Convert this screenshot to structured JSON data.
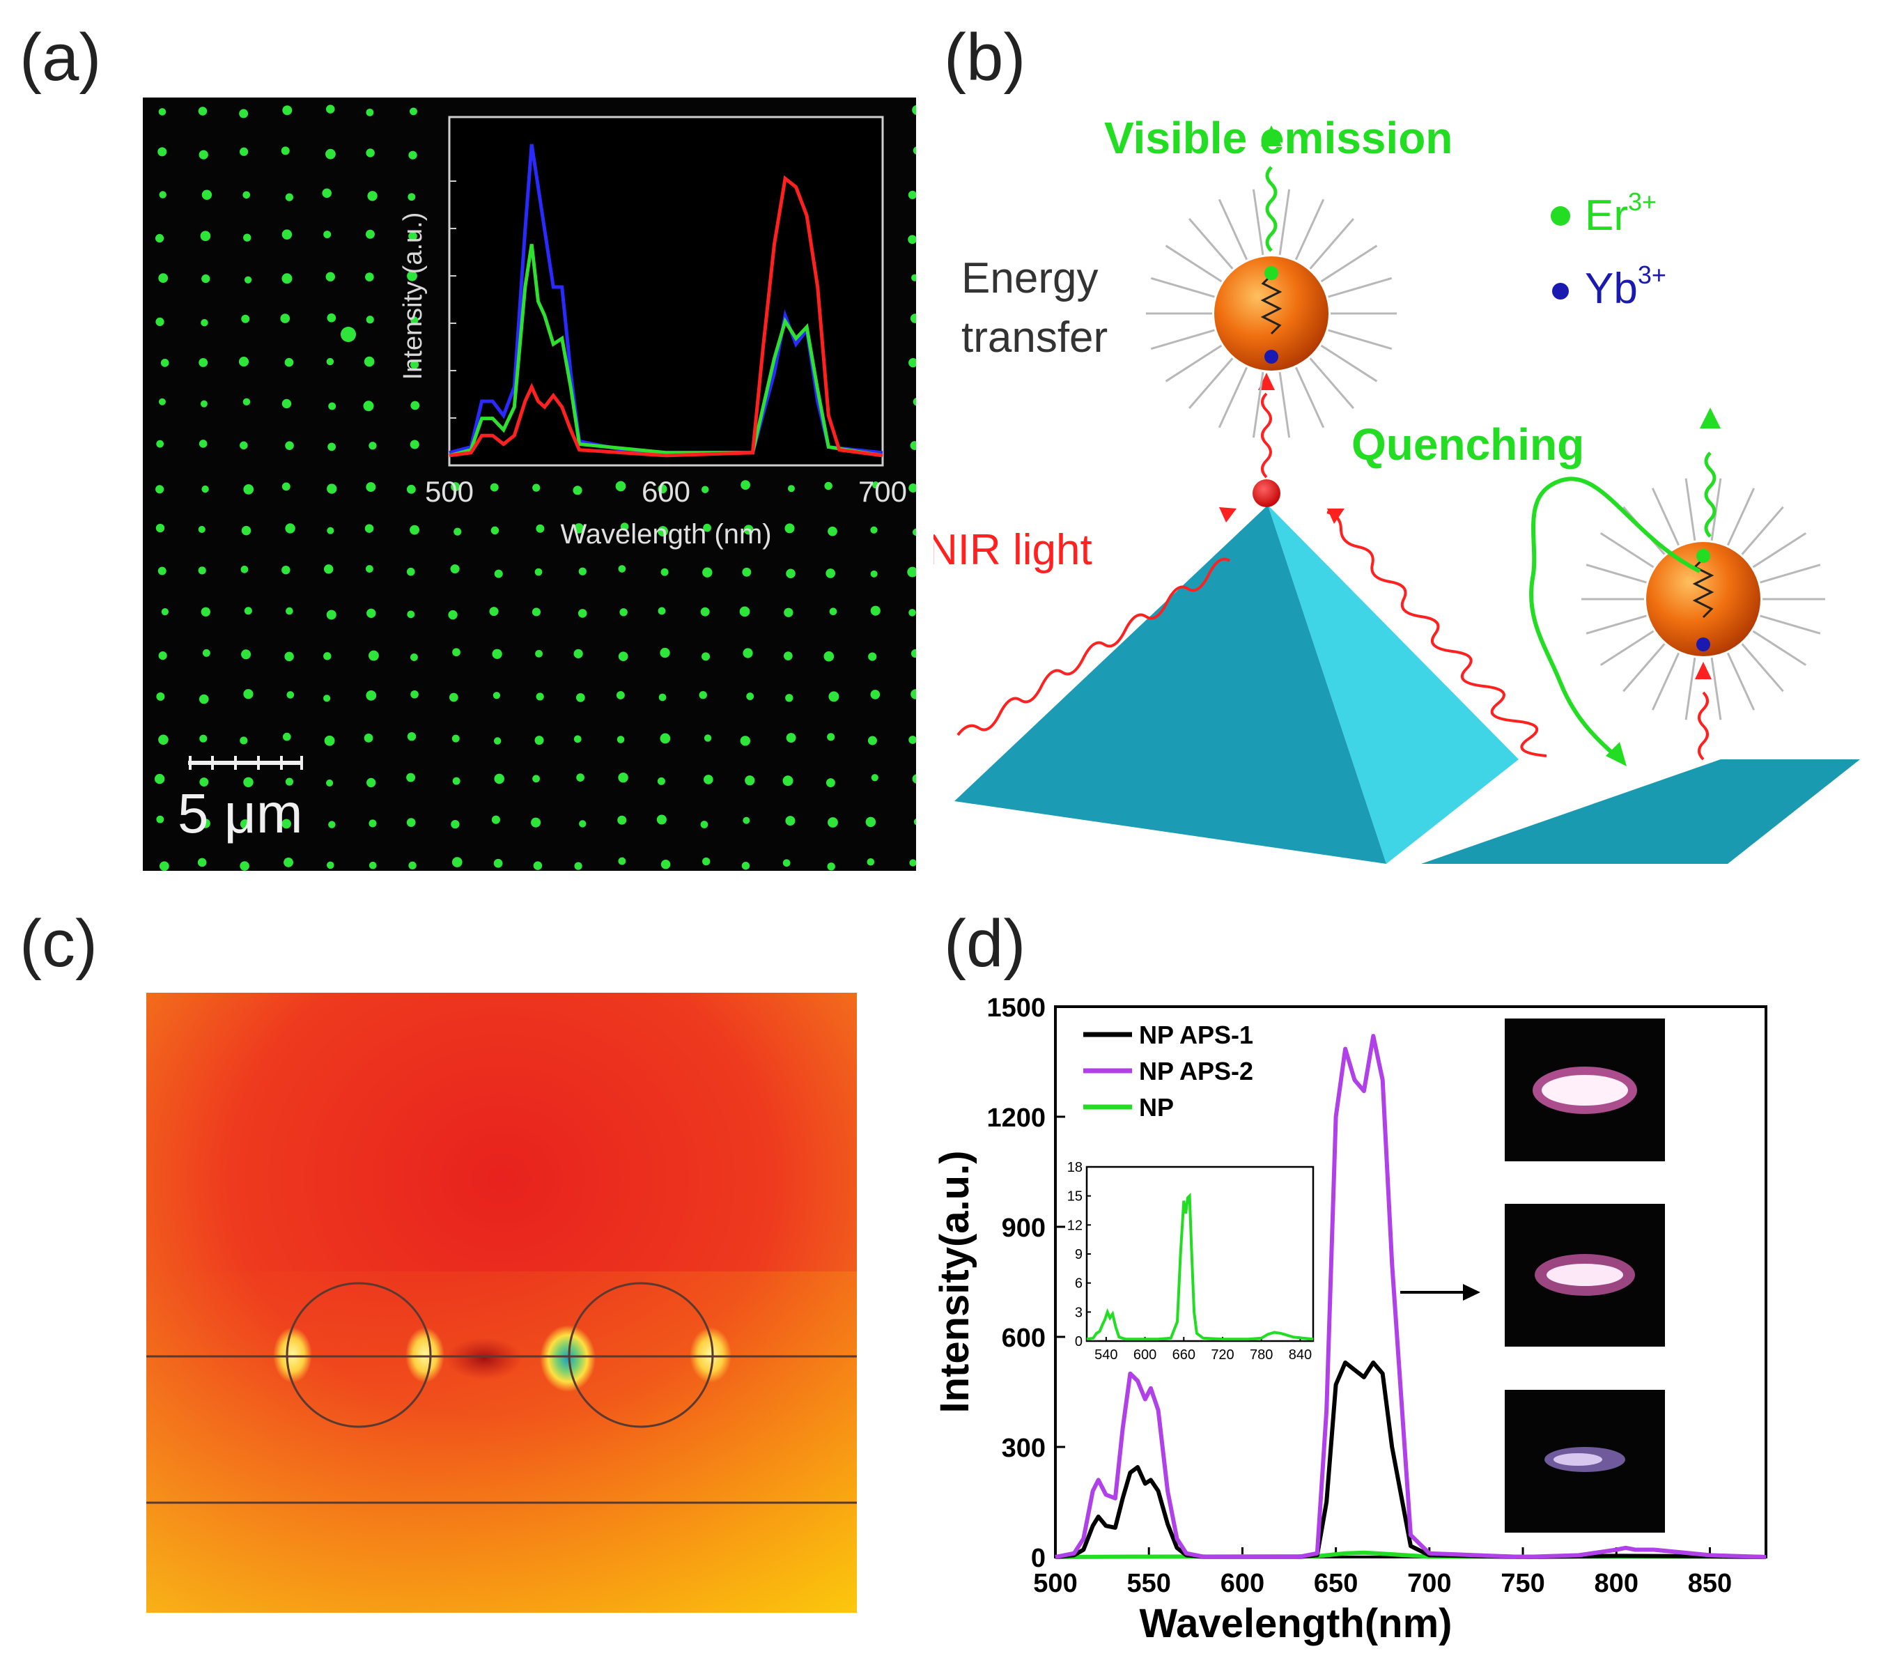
{
  "panels": {
    "a": {
      "label": "(a)"
    },
    "b": {
      "label": "(b)"
    },
    "c": {
      "label": "(c)"
    },
    "d": {
      "label": "(d)"
    }
  },
  "panel_a": {
    "scale_bar_label": "5 μm",
    "inset": {
      "ylabel": "Intensity (a.u.)",
      "xlabel": "Wavelength (nm)",
      "xticks": [
        "500",
        "600",
        "700"
      ]
    },
    "colors": {
      "dots": "#2ee63a",
      "background": "#050505",
      "red": "#ff2020",
      "green": "#30e030",
      "blue": "#2a2aff"
    }
  },
  "panel_b": {
    "visible_emission": "Visible emission",
    "energy_transfer_1": "Energy",
    "energy_transfer_2": "transfer",
    "quenching": "Quenching",
    "nir_light": "NIR light",
    "legend": [
      {
        "symbol": "Er",
        "sup": "3+",
        "color": "#22dd22"
      },
      {
        "symbol": "Yb",
        "sup": "3+",
        "color": "#1a1ab0"
      }
    ]
  },
  "panel_c": {
    "colors": {
      "field": "#ee3322",
      "edge": "#f5b020"
    }
  },
  "chart_data": {
    "type": "line",
    "xlabel": "Wavelength(nm)",
    "ylabel": "Intensity(a.u.)",
    "xlim": [
      500,
      880
    ],
    "ylim": [
      0,
      1500
    ],
    "xticks": [
      "500",
      "550",
      "600",
      "650",
      "700",
      "750",
      "800",
      "850"
    ],
    "yticks": [
      "0",
      "300",
      "600",
      "900",
      "1200",
      "1500"
    ],
    "legend_position": "top-left",
    "series": [
      {
        "name": "NP APS-1",
        "color": "#000000",
        "x": [
          500,
          510,
          515,
          520,
          523,
          527,
          532,
          536,
          540,
          544,
          548,
          551,
          555,
          560,
          565,
          570,
          580,
          600,
          620,
          630,
          640,
          645,
          650,
          655,
          660,
          665,
          670,
          675,
          680,
          690,
          700,
          750,
          800,
          850,
          880
        ],
        "y": [
          0,
          5,
          20,
          85,
          110,
          85,
          80,
          160,
          230,
          245,
          200,
          210,
          180,
          90,
          25,
          5,
          0,
          0,
          0,
          0,
          5,
          150,
          470,
          530,
          510,
          490,
          530,
          500,
          300,
          30,
          5,
          0,
          3,
          2,
          0
        ]
      },
      {
        "name": "NP APS-2",
        "color": "#b040e8",
        "x": [
          500,
          510,
          515,
          520,
          523,
          527,
          532,
          536,
          540,
          544,
          548,
          551,
          555,
          560,
          565,
          570,
          580,
          600,
          620,
          630,
          640,
          645,
          650,
          655,
          660,
          665,
          670,
          675,
          680,
          690,
          700,
          750,
          780,
          800,
          805,
          810,
          820,
          830,
          850,
          880
        ],
        "y": [
          0,
          10,
          50,
          180,
          210,
          170,
          160,
          350,
          500,
          480,
          430,
          460,
          400,
          180,
          50,
          10,
          0,
          0,
          0,
          0,
          10,
          400,
          1200,
          1385,
          1300,
          1270,
          1420,
          1300,
          800,
          60,
          10,
          0,
          5,
          20,
          25,
          20,
          20,
          15,
          5,
          0
        ]
      },
      {
        "name": "NP",
        "color": "#22dd22",
        "x": [
          500,
          540,
          550,
          640,
          655,
          665,
          675,
          700,
          800,
          830,
          880
        ],
        "y": [
          0,
          1,
          1,
          2,
          10,
          12,
          9,
          1,
          1,
          1,
          0
        ]
      }
    ]
  },
  "inset_d": {
    "xlim": [
      510,
      860
    ],
    "ylim": [
      0,
      18
    ],
    "xticks": [
      "540",
      "600",
      "660",
      "720",
      "780",
      "840"
    ],
    "yticks": [
      "0",
      "3",
      "6",
      "9",
      "12",
      "15",
      "18"
    ],
    "x": [
      510,
      520,
      525,
      530,
      535,
      538,
      542,
      546,
      550,
      555,
      560,
      570,
      590,
      620,
      640,
      650,
      655,
      660,
      663,
      666,
      669,
      672,
      676,
      680,
      690,
      720,
      760,
      780,
      790,
      800,
      810,
      830,
      860
    ],
    "y": [
      0.2,
      0.3,
      0.8,
      1.0,
      1.8,
      2.2,
      3.0,
      2.4,
      2.8,
      1.4,
      0.4,
      0.2,
      0.2,
      0.2,
      0.3,
      2.0,
      9.0,
      14.5,
      13.2,
      14.8,
      15.0,
      9.5,
      3.0,
      0.8,
      0.3,
      0.2,
      0.2,
      0.3,
      0.7,
      0.9,
      0.8,
      0.4,
      0.2
    ],
    "color": "#22dd22"
  }
}
